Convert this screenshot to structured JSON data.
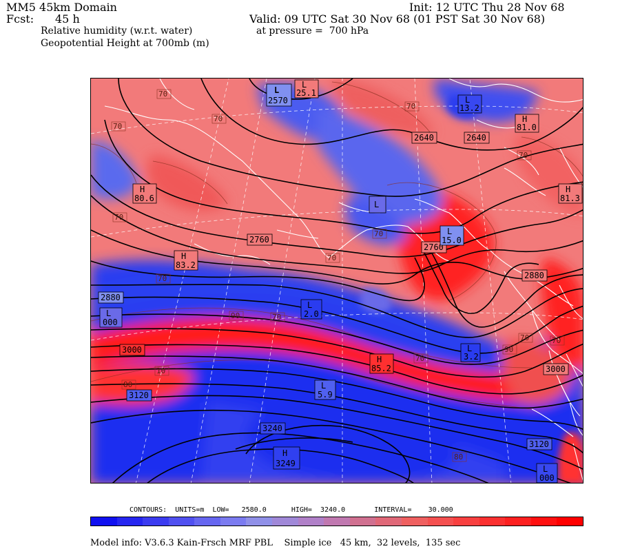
{
  "header": {
    "domain": "MM5 45km Domain",
    "init": "Init: 12 UTC Thu 28 Nov 68",
    "fcst_label": "Fcst:",
    "fcst_value": "45 h",
    "valid": "Valid: 09 UTC Sat 30 Nov 68 (01 PST Sat 30 Nov 68)",
    "field1": "Relative humidity (w.r.t. water)",
    "pressure": "at pressure =  700 hPa",
    "field2": "Geopotential Height at 700mb (m)"
  },
  "contour_info": {
    "contours": "CONTOURS:",
    "units": "UNITS=m",
    "low": "LOW=",
    "low_value": "2580.0",
    "high": "HIGH=",
    "high_value": "3240.0",
    "interval": "INTERVAL=",
    "interval_value": "30.000"
  },
  "model_info": "Model info: V3.6.3 Kain-Frsch MRF PBL    Simple ice   45 km,  32 levels,  135 sec",
  "colors": {
    "humid_red": "#ff1010",
    "mid_red": "#f86060",
    "pale_red": "#f4a0a0",
    "dry_blue": "#1a2ef0",
    "mid_blue": "#6070f0",
    "contour": "#000000",
    "coastline": "#ffffff"
  },
  "colorbar": [
    "#1010f0",
    "#2626f0",
    "#3b3bf0",
    "#5050f0",
    "#6666f0",
    "#7b7bf0",
    "#9090e8",
    "#a088d8",
    "#b080c8",
    "#c078b0",
    "#d07090",
    "#e06878",
    "#ef6060",
    "#f45050",
    "#f84040",
    "#fb3030",
    "#fd2020",
    "#ff1010",
    "#ff0000"
  ],
  "height_labels": [
    {
      "id": "h2570",
      "text": "2570"
    },
    {
      "id": "h2640a",
      "text": "2640"
    },
    {
      "id": "h2640b",
      "text": "2640"
    },
    {
      "id": "h2760a",
      "text": "2760"
    },
    {
      "id": "h2760b",
      "text": "2760"
    },
    {
      "id": "h2880a",
      "text": "2880"
    },
    {
      "id": "h2880b",
      "text": "2880"
    },
    {
      "id": "h3000a",
      "text": "3000"
    },
    {
      "id": "h3000b",
      "text": "3000"
    },
    {
      "id": "h3120a",
      "text": "3120"
    },
    {
      "id": "h3120b",
      "text": "3120"
    },
    {
      "id": "h3240",
      "text": "3240"
    },
    {
      "id": "h3249",
      "text": "3249"
    }
  ],
  "rh_labels": [
    {
      "id": "r1",
      "text": "70"
    },
    {
      "id": "r2",
      "text": "70"
    },
    {
      "id": "r3",
      "text": "70"
    },
    {
      "id": "r4",
      "text": "70"
    },
    {
      "id": "r5",
      "text": "70"
    },
    {
      "id": "r6",
      "text": "70"
    },
    {
      "id": "r7",
      "text": "70"
    },
    {
      "id": "r8",
      "text": "70"
    },
    {
      "id": "r9",
      "text": "70"
    },
    {
      "id": "r10",
      "text": "70"
    },
    {
      "id": "r11",
      "text": "70"
    },
    {
      "id": "r12",
      "text": "70"
    },
    {
      "id": "r13",
      "text": "70"
    },
    {
      "id": "r14",
      "text": "90"
    },
    {
      "id": "r15",
      "text": "90"
    },
    {
      "id": "r16",
      "text": "80"
    },
    {
      "id": "r17",
      "text": "10"
    },
    {
      "id": "r18",
      "text": "80"
    }
  ],
  "extrema": [
    {
      "id": "L1",
      "letter": "L",
      "value": "2570"
    },
    {
      "id": "L2",
      "letter": "L",
      "value": "25.1"
    },
    {
      "id": "L3",
      "letter": "L",
      "value": "13.2"
    },
    {
      "id": "H1",
      "letter": "H",
      "value": "81.0"
    },
    {
      "id": "H2",
      "letter": "H",
      "value": "80.6"
    },
    {
      "id": "H3",
      "letter": "H",
      "value": "81.3"
    },
    {
      "id": "L4",
      "letter": "L",
      "value": ""
    },
    {
      "id": "L5",
      "letter": "L",
      "value": "15.0"
    },
    {
      "id": "H4",
      "letter": "H",
      "value": "83.2"
    },
    {
      "id": "L6",
      "letter": "L",
      "value": "000"
    },
    {
      "id": "L7",
      "letter": "L",
      "value": "2.0"
    },
    {
      "id": "L8",
      "letter": "L",
      "value": "3.2"
    },
    {
      "id": "H5",
      "letter": "H",
      "value": "85.2"
    },
    {
      "id": "L9",
      "letter": "L",
      "value": "5.9"
    },
    {
      "id": "H6",
      "letter": "H",
      "value": "3249"
    },
    {
      "id": "L10",
      "letter": "L",
      "value": "000"
    }
  ]
}
